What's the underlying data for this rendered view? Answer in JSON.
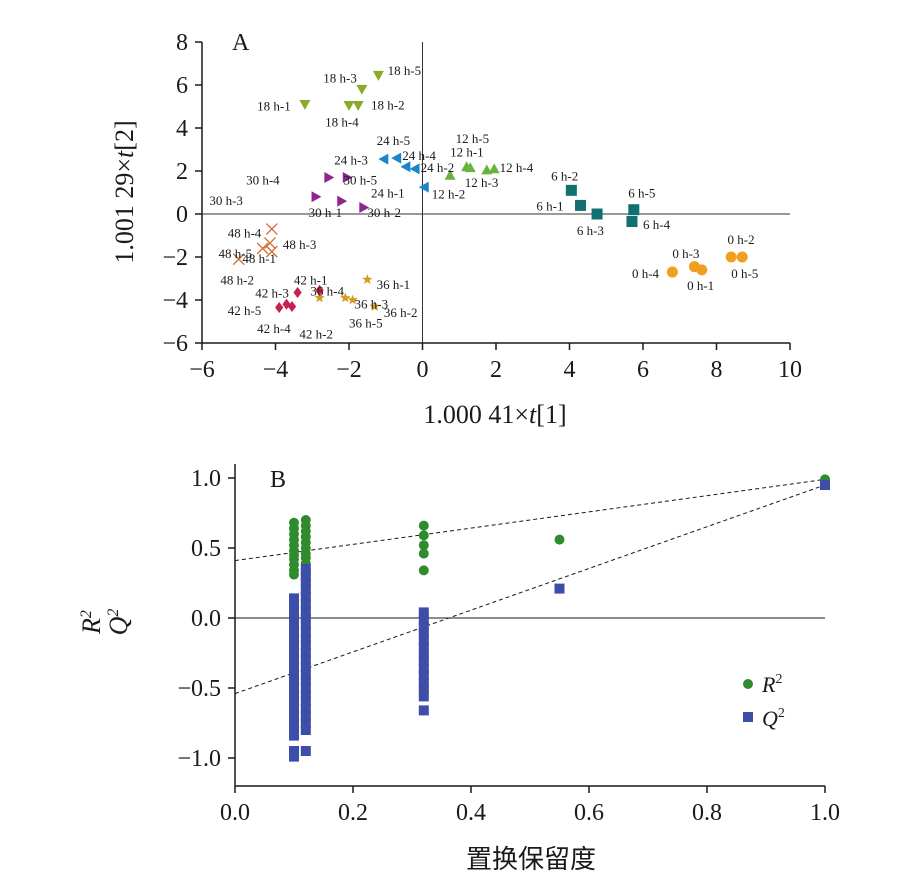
{
  "chart_data": [
    {
      "panel": "A",
      "type": "scatter",
      "xlabel": "1.000 41×t[1]",
      "ylabel": "1.001 29×t[2]",
      "xlim": [
        -6,
        10
      ],
      "ylim": [
        -6,
        8
      ],
      "xticks": [
        "−6",
        "−4",
        "−2",
        "0",
        "2",
        "4",
        "6",
        "8",
        "10"
      ],
      "yticks": [
        "−6",
        "−4",
        "−2",
        "0",
        "2",
        "4",
        "6",
        "8"
      ],
      "colors": {
        "h0": "#f0a020",
        "h6": "#117070",
        "h12": "#6ab23e",
        "h18": "#8aab28",
        "h24": "#1a86c8",
        "h30": "#8e2590",
        "h36": "#d99a22",
        "h42": "#c8204f",
        "h48": "#d2692c"
      },
      "series": [
        {
          "group": "0 h",
          "marker": "circle",
          "color": "#f0a020",
          "points": [
            {
              "label": "0 h-1",
              "x": 7.6,
              "y": -2.6,
              "tx": 7.2,
              "ty": -3.35
            },
            {
              "label": "0 h-2",
              "x": 8.7,
              "y": -2.0,
              "tx": 8.3,
              "ty": -1.2
            },
            {
              "label": "0 h-3",
              "x": 7.4,
              "y": -2.45,
              "tx": 6.8,
              "ty": -1.85
            },
            {
              "label": "0 h-4",
              "x": 6.8,
              "y": -2.7,
              "tx": 5.7,
              "ty": -2.8
            },
            {
              "label": "0 h-5",
              "x": 8.4,
              "y": -2.0,
              "tx": 8.4,
              "ty": -2.8
            }
          ]
        },
        {
          "group": "6 h",
          "marker": "square",
          "color": "#117070",
          "points": [
            {
              "label": "6 h-1",
              "x": 4.3,
              "y": 0.4,
              "tx": 3.1,
              "ty": 0.35
            },
            {
              "label": "6 h-2",
              "x": 4.05,
              "y": 1.1,
              "tx": 3.5,
              "ty": 1.75
            },
            {
              "label": "6 h-3",
              "x": 4.75,
              "y": 0.0,
              "tx": 4.2,
              "ty": -0.8
            },
            {
              "label": "6 h-4",
              "x": 5.7,
              "y": -0.35,
              "tx": 6.0,
              "ty": -0.5
            },
            {
              "label": "6 h-5",
              "x": 5.75,
              "y": 0.2,
              "tx": 5.6,
              "ty": 0.95
            }
          ]
        },
        {
          "group": "12 h",
          "marker": "triangle-up",
          "color": "#6ab23e",
          "points": [
            {
              "label": "12 h-1",
              "x": 1.2,
              "y": 2.2,
              "tx": 0.75,
              "ty": 2.85
            },
            {
              "label": "12 h-2",
              "x": 0.75,
              "y": 1.8,
              "tx": 0.25,
              "ty": 0.9
            },
            {
              "label": "12 h-3",
              "x": 1.75,
              "y": 2.05,
              "tx": 1.15,
              "ty": 1.45
            },
            {
              "label": "12 h-4",
              "x": 1.95,
              "y": 2.1,
              "tx": 2.1,
              "ty": 2.15
            },
            {
              "label": "12 h-5",
              "x": 1.3,
              "y": 2.15,
              "tx": 0.9,
              "ty": 3.5
            }
          ]
        },
        {
          "group": "18 h",
          "marker": "triangle-down",
          "color": "#8aab28",
          "points": [
            {
              "label": "18 h-1",
              "x": -3.2,
              "y": 5.1,
              "tx": -4.5,
              "ty": 5.0
            },
            {
              "label": "18 h-2",
              "x": -1.75,
              "y": 5.05,
              "tx": -1.4,
              "ty": 5.05
            },
            {
              "label": "18 h-3",
              "x": -1.65,
              "y": 5.8,
              "tx": -2.7,
              "ty": 6.3
            },
            {
              "label": "18 h-4",
              "x": -2.0,
              "y": 5.05,
              "tx": -2.65,
              "ty": 4.25
            },
            {
              "label": "18 h-5",
              "x": -1.2,
              "y": 6.45,
              "tx": -0.95,
              "ty": 6.65
            }
          ]
        },
        {
          "group": "24 h",
          "marker": "triangle-left",
          "color": "#1a86c8",
          "points": [
            {
              "label": "24 h-1",
              "x": 0.05,
              "y": 1.25,
              "tx": -1.4,
              "ty": 0.95
            },
            {
              "label": "24 h-2",
              "x": -0.2,
              "y": 2.1,
              "tx": -0.05,
              "ty": 2.15
            },
            {
              "label": "24 h-3",
              "x": -1.05,
              "y": 2.55,
              "tx": -2.4,
              "ty": 2.5
            },
            {
              "label": "24 h-4",
              "x": -0.45,
              "y": 2.2,
              "tx": -0.55,
              "ty": 2.7
            },
            {
              "label": "24 h-5",
              "x": -0.7,
              "y": 2.6,
              "tx": -1.25,
              "ty": 3.4
            }
          ]
        },
        {
          "group": "30 h",
          "marker": "triangle-right",
          "color": "#8e2590",
          "points": [
            {
              "label": "30 h-1",
              "x": -2.2,
              "y": 0.6,
              "tx": -3.1,
              "ty": 0.05
            },
            {
              "label": "30 h-2",
              "x": -1.6,
              "y": 0.3,
              "tx": -1.5,
              "ty": 0.05
            },
            {
              "label": "30 h-3",
              "x": -2.9,
              "y": 0.8,
              "tx": -5.8,
              "ty": 0.6
            },
            {
              "label": "30 h-4",
              "x": -2.55,
              "y": 1.7,
              "tx": -4.8,
              "ty": 1.55
            },
            {
              "label": "30 h-5",
              "x": -2.05,
              "y": 1.7,
              "tx": -2.15,
              "ty": 1.55
            }
          ]
        },
        {
          "group": "36 h",
          "marker": "star",
          "color": "#d99a22",
          "points": [
            {
              "label": "36 h-1",
              "x": -1.5,
              "y": -3.05,
              "tx": -1.25,
              "ty": -3.3
            },
            {
              "label": "36 h-2",
              "x": -1.3,
              "y": -4.3,
              "tx": -1.05,
              "ty": -4.6
            },
            {
              "label": "36 h-3",
              "x": -2.1,
              "y": -3.9,
              "tx": -1.85,
              "ty": -4.2
            },
            {
              "label": "36 h-4",
              "x": -2.8,
              "y": -3.9,
              "tx": -3.05,
              "ty": -3.6
            },
            {
              "label": "36 h-5",
              "x": -1.9,
              "y": -4.0,
              "tx": -2.0,
              "ty": -5.1
            }
          ]
        },
        {
          "group": "42 h",
          "marker": "diamond",
          "color": "#c8204f",
          "points": [
            {
              "label": "42 h-1",
              "x": -2.8,
              "y": -3.55,
              "tx": -3.5,
              "ty": -3.1
            },
            {
              "label": "42 h-2",
              "x": -3.55,
              "y": -4.3,
              "tx": -3.35,
              "ty": -5.6
            },
            {
              "label": "42 h-3",
              "x": -3.4,
              "y": -3.65,
              "tx": -4.55,
              "ty": -3.7
            },
            {
              "label": "42 h-4",
              "x": -3.7,
              "y": -4.2,
              "tx": -4.5,
              "ty": -5.35
            },
            {
              "label": "42 h-5",
              "x": -3.9,
              "y": -4.35,
              "tx": -5.3,
              "ty": -4.5
            }
          ]
        },
        {
          "group": "48 h",
          "marker": "x",
          "color": "#d2692c",
          "points": [
            {
              "label": "48 h-1",
              "x": -4.1,
              "y": -1.75,
              "tx": -4.9,
              "ty": -2.1
            },
            {
              "label": "48 h-2",
              "x": -4.35,
              "y": -1.6,
              "tx": -5.5,
              "ty": -3.1
            },
            {
              "label": "48 h-3",
              "x": -4.15,
              "y": -1.35,
              "tx": -3.8,
              "ty": -1.45
            },
            {
              "label": "48 h-4",
              "x": -4.1,
              "y": -0.7,
              "tx": -5.3,
              "ty": -0.9
            },
            {
              "label": "48 h-5",
              "x": -5.0,
              "y": -2.1,
              "tx": -5.55,
              "ty": -1.85
            }
          ]
        }
      ]
    },
    {
      "panel": "B",
      "type": "scatter",
      "xlabel": "置换保留度",
      "ylabel_r2": "R",
      "ylabel_q2": "Q",
      "ylabel_sup": "2",
      "xlim": [
        0.0,
        1.0
      ],
      "ylim": [
        -1.2,
        1.1
      ],
      "xticks": [
        "0.0",
        "0.2",
        "0.4",
        "0.6",
        "0.8",
        "1.0"
      ],
      "yticks": [
        "−1.0",
        "−0.5",
        "0.0",
        "0.5",
        "1.0"
      ],
      "legend": {
        "position": "lower-right",
        "r2_label": "R",
        "q2_label": "Q",
        "sup": "2"
      },
      "regression_lines": [
        {
          "name": "R2",
          "intercept": 0.41,
          "slope": 0.58
        },
        {
          "name": "Q2",
          "intercept": -0.54,
          "slope": 1.49
        }
      ],
      "series": [
        {
          "name": "R2",
          "marker": "circle",
          "color": "#2e8b2e",
          "points": [
            [
              0.1,
              0.68
            ],
            [
              0.1,
              0.64
            ],
            [
              0.1,
              0.6
            ],
            [
              0.1,
              0.56
            ],
            [
              0.1,
              0.52
            ],
            [
              0.1,
              0.48
            ],
            [
              0.1,
              0.45
            ],
            [
              0.1,
              0.42
            ],
            [
              0.1,
              0.38
            ],
            [
              0.1,
              0.34
            ],
            [
              0.1,
              0.31
            ],
            [
              0.12,
              0.7
            ],
            [
              0.12,
              0.66
            ],
            [
              0.12,
              0.62
            ],
            [
              0.12,
              0.58
            ],
            [
              0.12,
              0.54
            ],
            [
              0.12,
              0.5
            ],
            [
              0.12,
              0.46
            ],
            [
              0.12,
              0.43
            ],
            [
              0.12,
              0.39
            ],
            [
              0.12,
              0.35
            ],
            [
              0.12,
              0.31
            ],
            [
              0.32,
              0.66
            ],
            [
              0.32,
              0.59
            ],
            [
              0.32,
              0.52
            ],
            [
              0.32,
              0.46
            ],
            [
              0.32,
              0.34
            ],
            [
              0.55,
              0.56
            ],
            [
              1.0,
              0.99
            ]
          ]
        },
        {
          "name": "Q2",
          "marker": "square",
          "color": "#3d4ea8",
          "points": [
            [
              0.1,
              0.14
            ],
            [
              0.1,
              0.09
            ],
            [
              0.1,
              0.04
            ],
            [
              0.1,
              -0.01
            ],
            [
              0.1,
              -0.06
            ],
            [
              0.1,
              -0.11
            ],
            [
              0.1,
              -0.16
            ],
            [
              0.1,
              -0.21
            ],
            [
              0.1,
              -0.26
            ],
            [
              0.1,
              -0.31
            ],
            [
              0.1,
              -0.36
            ],
            [
              0.1,
              -0.41
            ],
            [
              0.1,
              -0.46
            ],
            [
              0.1,
              -0.51
            ],
            [
              0.1,
              -0.56
            ],
            [
              0.1,
              -0.61
            ],
            [
              0.1,
              -0.66
            ],
            [
              0.1,
              -0.71
            ],
            [
              0.1,
              -0.76
            ],
            [
              0.1,
              -0.81
            ],
            [
              0.1,
              -0.84
            ],
            [
              0.1,
              -0.95
            ],
            [
              0.1,
              -0.99
            ],
            [
              0.12,
              0.35
            ],
            [
              0.12,
              0.3
            ],
            [
              0.12,
              0.25
            ],
            [
              0.12,
              0.2
            ],
            [
              0.12,
              0.15
            ],
            [
              0.12,
              0.1
            ],
            [
              0.12,
              0.05
            ],
            [
              0.12,
              0.0
            ],
            [
              0.12,
              -0.05
            ],
            [
              0.12,
              -0.1
            ],
            [
              0.12,
              -0.15
            ],
            [
              0.12,
              -0.2
            ],
            [
              0.12,
              -0.25
            ],
            [
              0.12,
              -0.3
            ],
            [
              0.12,
              -0.35
            ],
            [
              0.12,
              -0.4
            ],
            [
              0.12,
              -0.45
            ],
            [
              0.12,
              -0.5
            ],
            [
              0.12,
              -0.55
            ],
            [
              0.12,
              -0.6
            ],
            [
              0.12,
              -0.65
            ],
            [
              0.12,
              -0.7
            ],
            [
              0.12,
              -0.75
            ],
            [
              0.12,
              -0.8
            ],
            [
              0.12,
              -0.95
            ],
            [
              0.32,
              0.04
            ],
            [
              0.32,
              -0.01
            ],
            [
              0.32,
              -0.06
            ],
            [
              0.32,
              -0.11
            ],
            [
              0.32,
              -0.16
            ],
            [
              0.32,
              -0.21
            ],
            [
              0.32,
              -0.26
            ],
            [
              0.32,
              -0.31
            ],
            [
              0.32,
              -0.36
            ],
            [
              0.32,
              -0.41
            ],
            [
              0.32,
              -0.46
            ],
            [
              0.32,
              -0.51
            ],
            [
              0.32,
              -0.56
            ],
            [
              0.32,
              -0.66
            ],
            [
              0.55,
              0.21
            ],
            [
              1.0,
              0.95
            ]
          ]
        }
      ]
    }
  ]
}
